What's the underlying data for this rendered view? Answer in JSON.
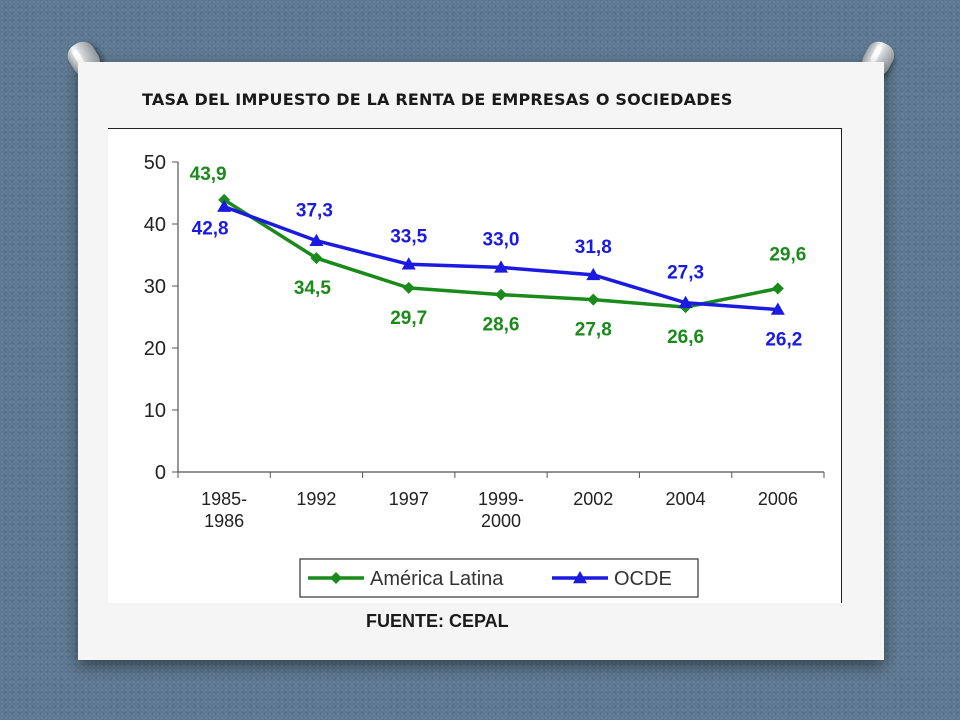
{
  "slide": {
    "title": "TASA DEL IMPUESTO DE LA RENTA DE EMPRESAS O SOCIEDADES",
    "source": "FUENTE: CEPAL"
  },
  "chart_data": {
    "type": "line",
    "categories": [
      "1985-1986",
      "1992",
      "1997",
      "1999-2000",
      "2002",
      "2004",
      "2006"
    ],
    "category_label_lines": [
      [
        "1985-",
        "1986"
      ],
      [
        "1992"
      ],
      [
        "1997"
      ],
      [
        "1999-",
        "2000"
      ],
      [
        "2002"
      ],
      [
        "2004"
      ],
      [
        "2006"
      ]
    ],
    "series": [
      {
        "name": "América Latina",
        "color": "#1a8a1a",
        "marker": "diamond",
        "values": [
          43.9,
          34.5,
          29.7,
          28.6,
          27.8,
          26.6,
          29.6
        ],
        "labels": [
          "43,9",
          "34,5",
          "29,7",
          "28,6",
          "27,8",
          "26,6",
          "29,6"
        ]
      },
      {
        "name": "OCDE",
        "color": "#1a1ae0",
        "marker": "triangle",
        "values": [
          42.8,
          37.3,
          33.5,
          33.0,
          31.8,
          27.3,
          26.2
        ],
        "labels": [
          "42,8",
          "37,3",
          "33,5",
          "33,0",
          "31,8",
          "27,3",
          "26,2"
        ]
      }
    ],
    "yticks": [
      "0",
      "10",
      "20",
      "30",
      "40",
      "50"
    ],
    "ylim": [
      0,
      50
    ],
    "grid": false,
    "legend": "bottom"
  }
}
